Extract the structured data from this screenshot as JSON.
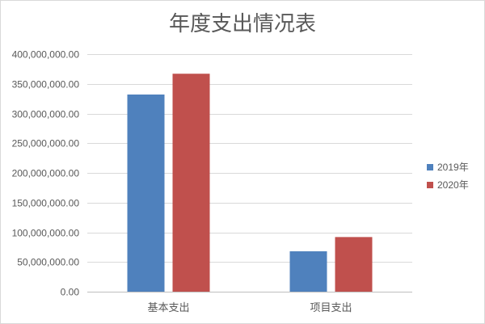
{
  "chart_data": {
    "type": "bar",
    "title": "年度支出情况表",
    "categories": [
      "基本支出",
      "项目支出"
    ],
    "series": [
      {
        "name": "2019年",
        "color": "#4F81BD",
        "values": [
          332000000,
          68000000
        ]
      },
      {
        "name": "2020年",
        "color": "#C0504D",
        "values": [
          367000000,
          92000000
        ]
      }
    ],
    "ylim": [
      0,
      400000000
    ],
    "yticks": [
      0,
      50000000,
      100000000,
      150000000,
      200000000,
      250000000,
      300000000,
      350000000,
      400000000
    ],
    "ytick_labels": [
      "0.00",
      "50,000,000.00",
      "100,000,000.00",
      "150,000,000.00",
      "200,000,000.00",
      "250,000,000.00",
      "300,000,000.00",
      "350,000,000.00",
      "400,000,000.00"
    ],
    "grid": true,
    "legend": "right"
  }
}
